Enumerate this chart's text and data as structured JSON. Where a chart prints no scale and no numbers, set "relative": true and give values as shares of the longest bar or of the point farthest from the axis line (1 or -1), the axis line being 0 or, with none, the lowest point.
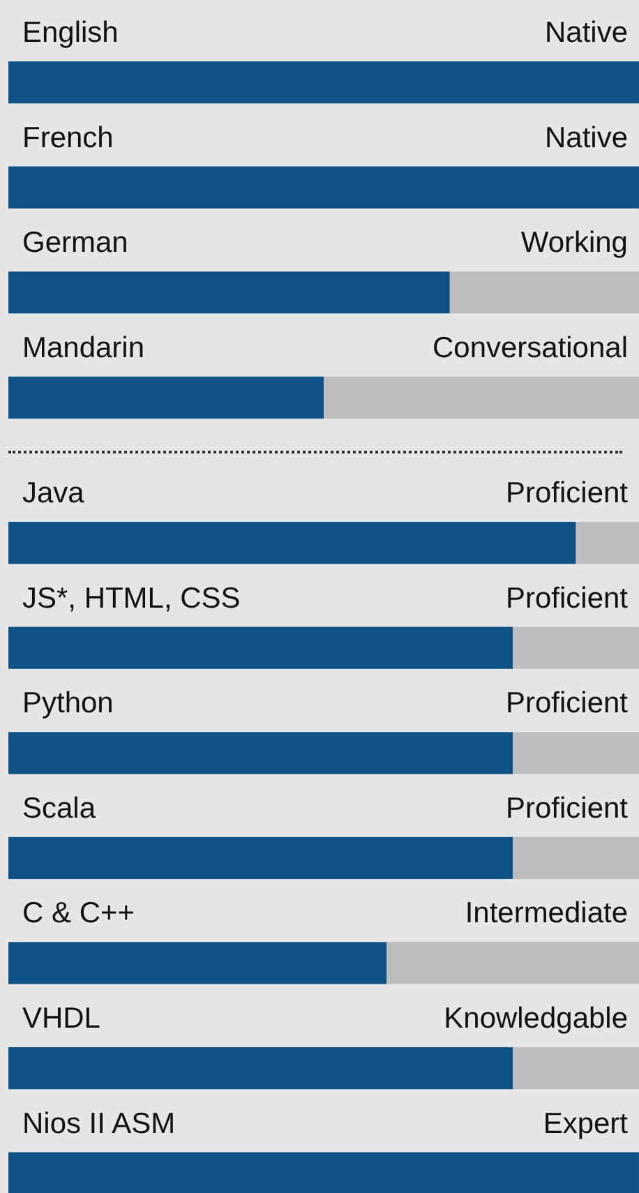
{
  "chart_data": [
    {
      "type": "bar",
      "orientation": "horizontal",
      "relative": true,
      "stacked": true,
      "categories": [
        "English",
        "French",
        "German",
        "Mandarin"
      ],
      "series": [
        {
          "color": "#0f5286",
          "values": [
            1,
            1,
            0.7,
            0.5
          ]
        },
        {
          "color": "#bdbdbd",
          "values": [
            0,
            0,
            0.3,
            0.5
          ]
        }
      ],
      "value_labels": [
        "Native",
        "Native",
        "Working",
        "Conversational"
      ]
    },
    {
      "type": "bar",
      "orientation": "horizontal",
      "relative": true,
      "stacked": true,
      "categories": [
        "Java",
        "JS*, HTML, CSS",
        "Python",
        "Scala",
        "C & C++",
        "VHDL",
        "Nios II ASM"
      ],
      "series": [
        {
          "color": "#0f5286",
          "values": [
            0.9,
            0.8,
            0.8,
            0.8,
            0.6,
            0.8,
            1
          ]
        },
        {
          "color": "#bdbdbd",
          "values": [
            0.1,
            0.2,
            0.2,
            0.2,
            0.4,
            0.2,
            0
          ]
        }
      ],
      "value_labels": [
        "Proficient",
        "Proficient",
        "Proficient",
        "Proficient",
        "Intermediate",
        "Knowledgable",
        "Expert"
      ]
    }
  ]
}
